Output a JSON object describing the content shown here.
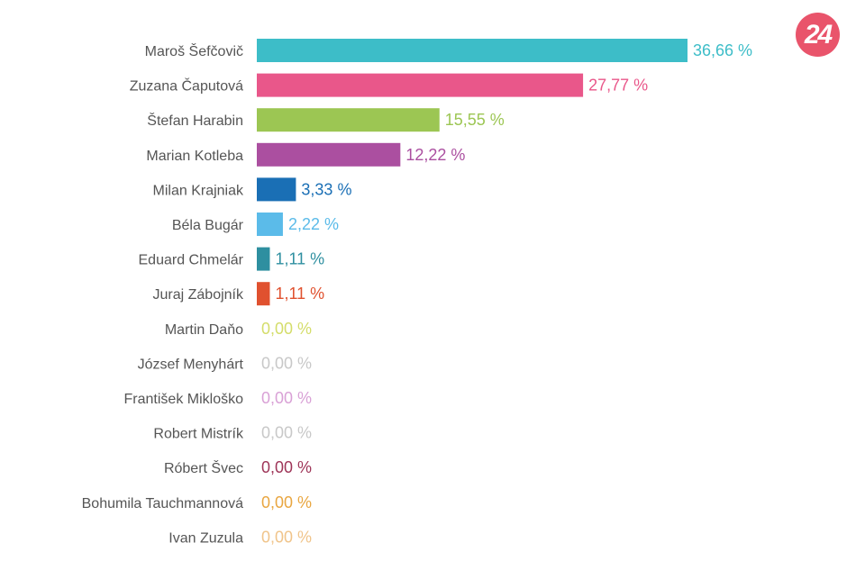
{
  "logo": {
    "text": "24",
    "color": "#e9546b"
  },
  "chart_data": {
    "type": "bar",
    "orientation": "horizontal",
    "categories": [
      "Maroš Šefčovič",
      "Zuzana Čaputová",
      "Štefan Harabin",
      "Marian Kotleba",
      "Milan Krajniak",
      "Béla Bugár",
      "Eduard Chmelár",
      "Juraj Zábojník",
      "Martin Daňo",
      "József Menyhárt",
      "František Mikloško",
      "Robert Mistrík",
      "Róbert Švec",
      "Bohumila Tauchmannová",
      "Ivan Zuzula"
    ],
    "values": [
      36.66,
      27.77,
      15.55,
      12.22,
      3.33,
      2.22,
      1.11,
      1.11,
      0.0,
      0.0,
      0.0,
      0.0,
      0.0,
      0.0,
      0.0
    ],
    "value_labels": [
      "36,66 %",
      "27,77 %",
      "15,55 %",
      "12,22 %",
      "3,33 %",
      "2,22 %",
      "1,11 %",
      "1,11 %",
      "0,00 %",
      "0,00 %",
      "0,00 %",
      "0,00 %",
      "0,00 %",
      "0,00 %",
      "0,00 %"
    ],
    "colors": [
      "#3dbdc8",
      "#e9578a",
      "#9cc653",
      "#ab4fa0",
      "#1a6fb5",
      "#5bbbe9",
      "#2e8fa0",
      "#e0512f",
      "#d4dd6a",
      "#c8c8c8",
      "#d9a1d6",
      "#c8c8c8",
      "#9e3558",
      "#e9a640",
      "#f0c48a"
    ],
    "xlim": [
      0,
      36.66
    ],
    "grid": false,
    "legend": "none",
    "title": "",
    "xlabel": "",
    "ylabel": ""
  }
}
